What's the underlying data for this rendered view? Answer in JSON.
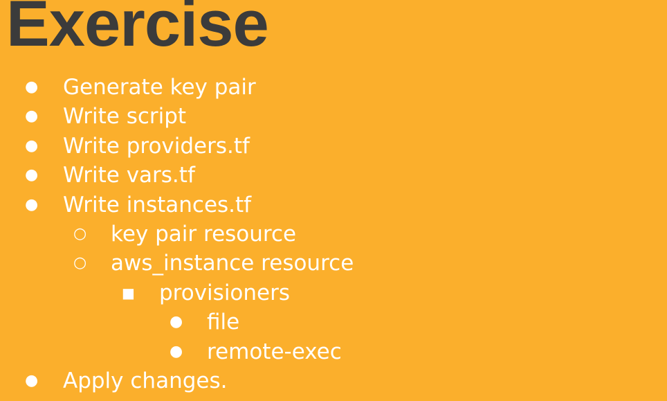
{
  "slide": {
    "title": "Exercise",
    "colors": {
      "background": "#FBAF2C",
      "title": "#3B3B3B",
      "text": "#FFFFFF"
    },
    "items": [
      {
        "level": 1,
        "bullet": "●",
        "text": "Generate key pair"
      },
      {
        "level": 1,
        "bullet": "●",
        "text": "Write script"
      },
      {
        "level": 1,
        "bullet": "●",
        "text": "Write providers.tf"
      },
      {
        "level": 1,
        "bullet": "●",
        "text": "Write vars.tf"
      },
      {
        "level": 1,
        "bullet": "●",
        "text": "Write instances.tf"
      },
      {
        "level": 2,
        "bullet": "○",
        "text": "key pair resource"
      },
      {
        "level": 2,
        "bullet": "○",
        "text": "aws_instance resource"
      },
      {
        "level": 3,
        "bullet": "■",
        "text": "provisioners"
      },
      {
        "level": 4,
        "bullet": "●",
        "text": "file"
      },
      {
        "level": 4,
        "bullet": "●",
        "text": "remote-exec"
      },
      {
        "level": 1,
        "bullet": "●",
        "text": "Apply changes."
      }
    ]
  }
}
